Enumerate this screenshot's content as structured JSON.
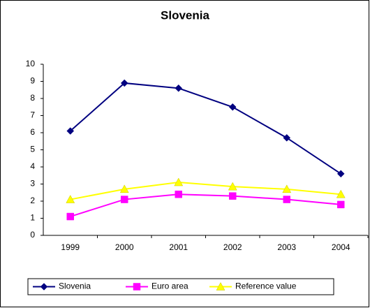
{
  "chart_data": {
    "type": "line",
    "title": "Slovenia",
    "categories": [
      "1999",
      "2000",
      "2001",
      "2002",
      "2003",
      "2004"
    ],
    "series": [
      {
        "name": "Slovenia",
        "color": "#000080",
        "marker": "diamond",
        "values": [
          6.1,
          8.9,
          8.6,
          7.5,
          5.7,
          3.6
        ]
      },
      {
        "name": "Euro area",
        "color": "#ff00ff",
        "marker": "square",
        "values": [
          1.1,
          2.1,
          2.4,
          2.3,
          2.1,
          1.8
        ]
      },
      {
        "name": "Reference value",
        "color": "#ffff00",
        "marker": "triangle",
        "values": [
          2.1,
          2.7,
          3.1,
          2.85,
          2.7,
          2.4
        ]
      }
    ],
    "ylim": [
      0,
      10
    ],
    "yticks": [
      0,
      1,
      2,
      3,
      4,
      5,
      6,
      7,
      8,
      9,
      10
    ],
    "legend": "bottom"
  }
}
